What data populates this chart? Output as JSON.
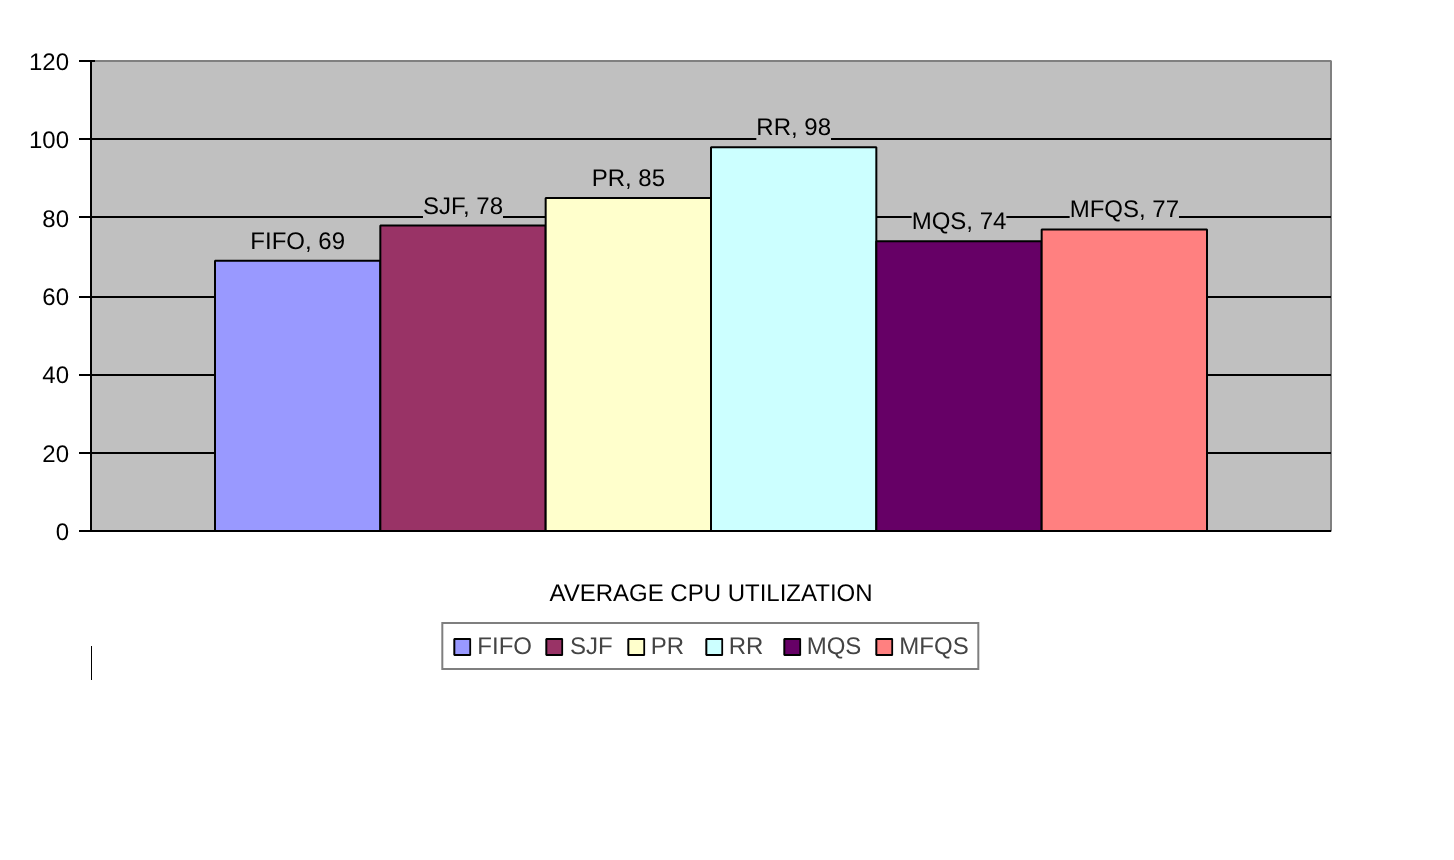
{
  "chart_data": {
    "type": "bar",
    "categories": [
      "AVERAGE CPU UTILIZATION"
    ],
    "series": [
      {
        "name": "FIFO",
        "color": "#9999ff",
        "values": [
          69
        ],
        "value_labels": [
          "FIFO, 69"
        ]
      },
      {
        "name": "SJF",
        "color": "#993366",
        "values": [
          78
        ],
        "value_labels": [
          "SJF, 78"
        ]
      },
      {
        "name": "PR",
        "color": "#ffffcc",
        "values": [
          85
        ],
        "value_labels": [
          "PR, 85"
        ]
      },
      {
        "name": "RR",
        "color": "#ccffff",
        "values": [
          98
        ],
        "value_labels": [
          "RR, 98"
        ]
      },
      {
        "name": "MQS",
        "color": "#660066",
        "values": [
          74
        ],
        "value_labels": [
          "MQS, 74"
        ]
      },
      {
        "name": "MFQS",
        "color": "#ff8080",
        "values": [
          77
        ],
        "value_labels": [
          "MFQS, 77"
        ]
      }
    ],
    "ylim": [
      0,
      120
    ],
    "yticks": [
      0,
      20,
      40,
      60,
      80,
      100,
      120
    ],
    "grid": "y",
    "legend": "bottom"
  }
}
